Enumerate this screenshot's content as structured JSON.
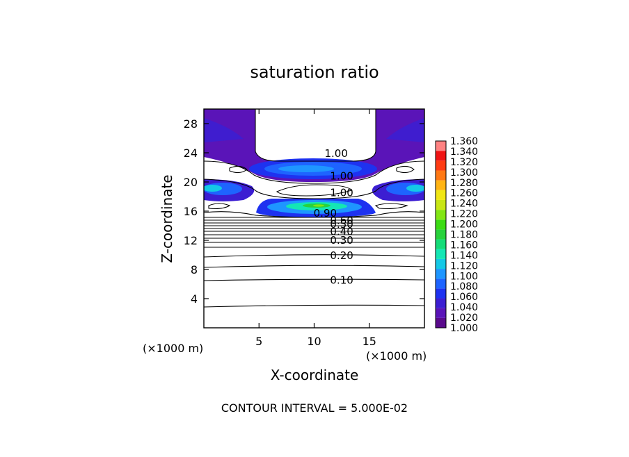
{
  "chart_data": {
    "type": "heatmap",
    "title": "saturation ratio",
    "xlabel": "X-coordinate",
    "ylabel": "Z-coordinate",
    "x_unit": "(×1000 m)",
    "y_unit": "(×1000 m)",
    "footer": "CONTOUR INTERVAL = 5.000E-02",
    "xlim": [
      0,
      20
    ],
    "ylim": [
      0,
      30
    ],
    "x_ticks": [
      5,
      10,
      15
    ],
    "y_ticks": [
      4,
      8,
      12,
      16,
      20,
      24,
      28
    ],
    "colorbar": {
      "min": 1.0,
      "max": 1.36,
      "step": 0.02,
      "labels": [
        "1.360",
        "1.340",
        "1.320",
        "1.300",
        "1.280",
        "1.260",
        "1.240",
        "1.220",
        "1.200",
        "1.180",
        "1.160",
        "1.140",
        "1.120",
        "1.100",
        "1.080",
        "1.060",
        "1.040",
        "1.020",
        "1.000"
      ],
      "colors": [
        "#5a0a8c",
        "#5a14b8",
        "#3c1ed2",
        "#1e32f0",
        "#1e64ff",
        "#1e96ff",
        "#14c8e6",
        "#14e6b4",
        "#14dc78",
        "#28d23c",
        "#3cdc14",
        "#82e614",
        "#c8e614",
        "#f0e614",
        "#ffb414",
        "#ff7814",
        "#ff3c14",
        "#f01414",
        "#ff8282"
      ]
    },
    "contour_labels": [
      {
        "text": "1.00",
        "x": 12.0,
        "z": 24.0
      },
      {
        "text": "1.00",
        "x": 12.5,
        "z": 20.9
      },
      {
        "text": "1.00",
        "x": 12.5,
        "z": 18.6
      },
      {
        "text": "0.90",
        "x": 11.0,
        "z": 15.8
      },
      {
        "text": "0.60",
        "x": 12.5,
        "z": 14.8
      },
      {
        "text": "0.50",
        "x": 12.5,
        "z": 14.3
      },
      {
        "text": "0.40",
        "x": 12.5,
        "z": 13.3
      },
      {
        "text": "0.30",
        "x": 12.5,
        "z": 12.1
      },
      {
        "text": "0.20",
        "x": 12.5,
        "z": 10.0
      },
      {
        "text": "0.10",
        "x": 12.5,
        "z": 6.6
      }
    ]
  }
}
